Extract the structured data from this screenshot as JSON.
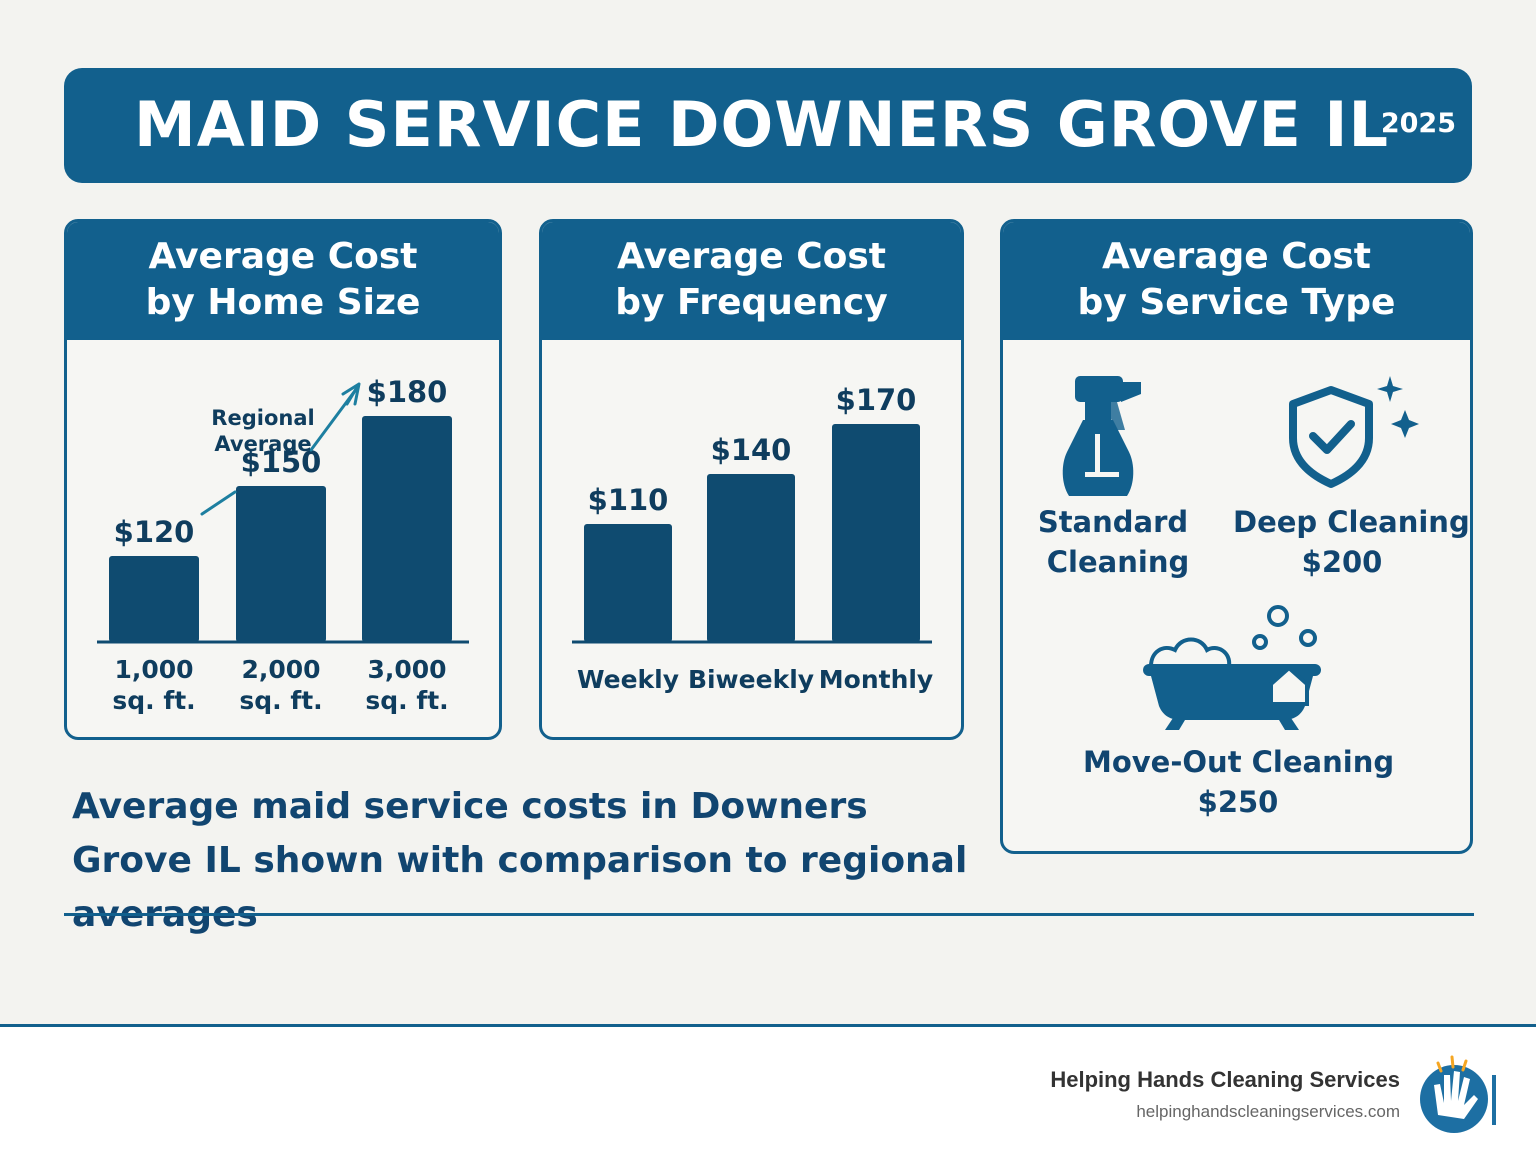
{
  "header": {
    "title": "MAID SERVICE DOWNERS GROVE IL",
    "year": "2025"
  },
  "colors": {
    "primary": "#12608d",
    "bar": "#0f4b70",
    "text": "#114570",
    "background": "#f3f3f0"
  },
  "chart_data": [
    {
      "type": "bar",
      "title_line1": "Average Cost",
      "title_line2": "by Home Size",
      "categories": [
        [
          "1,000",
          "sq. ft."
        ],
        [
          "2,000",
          "sq. ft."
        ],
        [
          "3,000",
          "sq. ft."
        ]
      ],
      "values": [
        120,
        150,
        180
      ],
      "labels": [
        "$120",
        "$150",
        "$180"
      ],
      "annotation": {
        "line1": "Regional",
        "line2": "Average"
      }
    },
    {
      "type": "bar",
      "title_line1": "Average Cost",
      "title_line2": "by Frequency",
      "categories": [
        "Weekly",
        "Biweekly",
        "Monthly"
      ],
      "values": [
        110,
        140,
        170
      ],
      "labels": [
        "$110",
        "$140",
        "$170"
      ]
    }
  ],
  "service_panel": {
    "title_line1": "Average Cost",
    "title_line2": "by Service Type",
    "items": [
      {
        "label1": "Standard",
        "label2": "Cleaning",
        "icon": "spray-bottle-icon"
      },
      {
        "label1": "Deep Cleaning",
        "label2": "$200",
        "icon": "shield-check-icon"
      },
      {
        "label1": "Move-Out Cleaning",
        "label2": "$250",
        "icon": "bathtub-icon"
      }
    ]
  },
  "caption": "Average maid service costs in Downers Grove IL shown with comparison to regional averages",
  "footer": {
    "company": "Helping Hands Cleaning Services",
    "url": "helpinghandscleaningservices.com",
    "logo_icon": "hand-logo-icon"
  }
}
